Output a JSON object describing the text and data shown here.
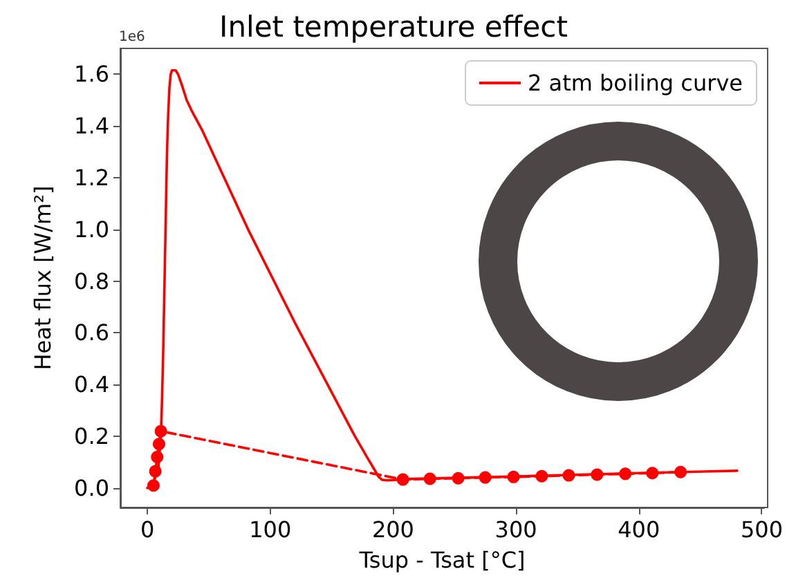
{
  "chart_data": {
    "type": "line",
    "title": "Inlet temperature effect",
    "xlabel": "Tsup - Tsat [°C]",
    "ylabel": "Heat flux [W/m²]",
    "annotations": [
      "1e6"
    ],
    "xlim": [
      -22,
      502
    ],
    "ylim": [
      -0.075,
      1.7
    ],
    "xticks": [
      0,
      100,
      200,
      300,
      400,
      500
    ],
    "yticks": [
      {
        "value": 0,
        "label": "0.0"
      },
      {
        "value": 0.2,
        "label": "0.2"
      },
      {
        "value": 0.4,
        "label": "0.4"
      },
      {
        "value": 0.6,
        "label": "0.6"
      },
      {
        "value": 0.8,
        "label": "0.8"
      },
      {
        "value": 1.0,
        "label": "1.0"
      },
      {
        "value": 1.2,
        "label": "1.2"
      },
      {
        "value": 1.4,
        "label": "1.4"
      },
      {
        "value": 1.6,
        "label": "1.6"
      }
    ],
    "grid": false,
    "legend": "top right",
    "series": [
      {
        "name": "2 atm boiling curve",
        "color": "#ff0000",
        "line_style": "solid",
        "marker": "none",
        "x": [
          0,
          5,
          9,
          11,
          12,
          13,
          14,
          15,
          16,
          17,
          18,
          19,
          20,
          23,
          25,
          28,
          32,
          36,
          45,
          82,
          120,
          169,
          180,
          185,
          188,
          191,
          195,
          200,
          210,
          300,
          400,
          480
        ],
        "values": [
          0,
          0.02,
          0.08,
          0.2,
          0.35,
          0.55,
          0.8,
          1.05,
          1.3,
          1.45,
          1.55,
          1.6,
          1.615,
          1.615,
          1.6,
          1.56,
          1.5,
          1.46,
          1.38,
          1.0,
          0.64,
          0.2,
          0.11,
          0.07,
          0.045,
          0.032,
          0.03,
          0.031,
          0.035,
          0.045,
          0.058,
          0.067
        ]
      },
      {
        "color": "#ff0000",
        "line_style": "dashed",
        "marker": "circle",
        "x": [
          5,
          6.5,
          8,
          9.5,
          11,
          208,
          230,
          253,
          275,
          298,
          321,
          343,
          366,
          389,
          411,
          434
        ],
        "values": [
          0.01,
          0.065,
          0.12,
          0.17,
          0.22,
          0.033,
          0.036,
          0.038,
          0.041,
          0.043,
          0.046,
          0.049,
          0.052,
          0.055,
          0.058,
          0.062
        ]
      }
    ]
  }
}
